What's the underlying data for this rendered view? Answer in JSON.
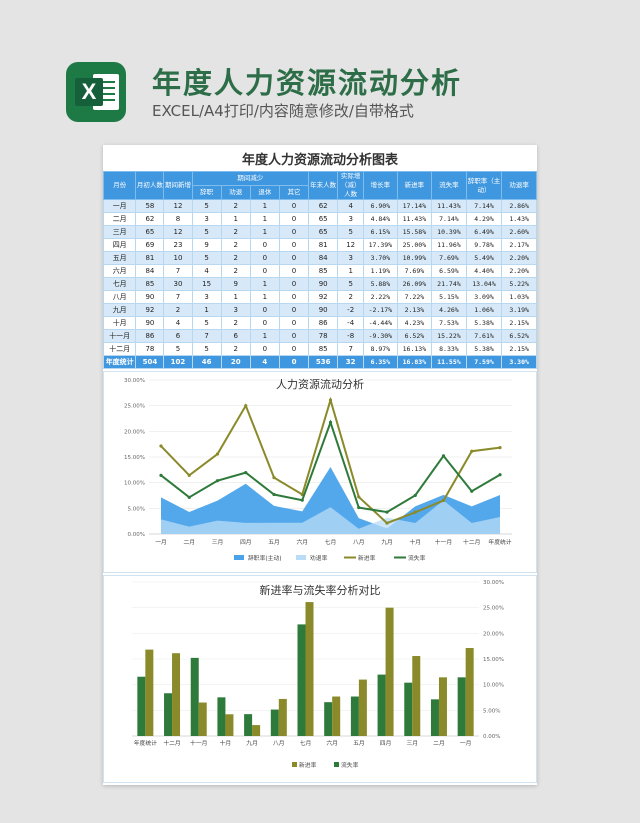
{
  "header": {
    "title": "年度人力资源流动分析",
    "subtitle": "EXCEL/A4打印/内容随意修改/自带格式",
    "icon": "excel-icon"
  },
  "table": {
    "title": "年度人力资源流动分析图表",
    "headers": {
      "month": "月份",
      "start": "月初人数",
      "new": "期间新增",
      "decrease": "期间减少",
      "resign": "辞职",
      "dismiss": "劝退",
      "retire": "退休",
      "other": "其它",
      "end": "年末人数",
      "actual": "实际增（减）人数",
      "growth": "增长率",
      "newRate": "新进率",
      "lossRate": "流失率",
      "resignRate": "辞职率（主动）",
      "dismissRate": "劝退率"
    },
    "rows": [
      [
        "一月",
        "58",
        "12",
        "5",
        "2",
        "1",
        "0",
        "62",
        "4",
        "6.90%",
        "17.14%",
        "11.43%",
        "7.14%",
        "2.86%"
      ],
      [
        "二月",
        "62",
        "8",
        "3",
        "1",
        "1",
        "0",
        "65",
        "3",
        "4.84%",
        "11.43%",
        "7.14%",
        "4.29%",
        "1.43%"
      ],
      [
        "三月",
        "65",
        "12",
        "5",
        "2",
        "1",
        "0",
        "65",
        "5",
        "6.15%",
        "15.58%",
        "10.39%",
        "6.49%",
        "2.60%"
      ],
      [
        "四月",
        "69",
        "23",
        "9",
        "2",
        "0",
        "0",
        "81",
        "12",
        "17.39%",
        "25.00%",
        "11.96%",
        "9.78%",
        "2.17%"
      ],
      [
        "五月",
        "81",
        "10",
        "5",
        "2",
        "0",
        "0",
        "84",
        "3",
        "3.70%",
        "10.99%",
        "7.69%",
        "5.49%",
        "2.20%"
      ],
      [
        "六月",
        "84",
        "7",
        "4",
        "2",
        "0",
        "0",
        "85",
        "1",
        "1.19%",
        "7.69%",
        "6.59%",
        "4.40%",
        "2.20%"
      ],
      [
        "七月",
        "85",
        "30",
        "15",
        "9",
        "1",
        "0",
        "90",
        "5",
        "5.88%",
        "26.09%",
        "21.74%",
        "13.04%",
        "5.22%"
      ],
      [
        "八月",
        "90",
        "7",
        "3",
        "1",
        "1",
        "0",
        "92",
        "2",
        "2.22%",
        "7.22%",
        "5.15%",
        "3.09%",
        "1.03%"
      ],
      [
        "九月",
        "92",
        "2",
        "1",
        "3",
        "0",
        "0",
        "90",
        "-2",
        "-2.17%",
        "2.13%",
        "4.26%",
        "1.06%",
        "3.19%"
      ],
      [
        "十月",
        "90",
        "4",
        "5",
        "2",
        "0",
        "0",
        "86",
        "-4",
        "-4.44%",
        "4.23%",
        "7.53%",
        "5.38%",
        "2.15%"
      ],
      [
        "十一月",
        "86",
        "6",
        "7",
        "6",
        "1",
        "0",
        "78",
        "-8",
        "-9.30%",
        "6.52%",
        "15.22%",
        "7.61%",
        "6.52%"
      ],
      [
        "十二月",
        "78",
        "5",
        "5",
        "2",
        "0",
        "0",
        "85",
        "7",
        "8.97%",
        "16.13%",
        "8.33%",
        "5.38%",
        "2.15%"
      ]
    ],
    "total": [
      "年度统计",
      "504",
      "102",
      "46",
      "20",
      "4",
      "0",
      "536",
      "32",
      "6.35%",
      "16.83%",
      "11.55%",
      "7.59%",
      "3.30%"
    ]
  },
  "chart_data": [
    {
      "type": "line",
      "title": "人力资源流动分析",
      "categories": [
        "一月",
        "二月",
        "三月",
        "四月",
        "五月",
        "六月",
        "七月",
        "八月",
        "九月",
        "十月",
        "十一月",
        "十二月",
        "年度统计"
      ],
      "yticks": [
        "0.00%",
        "5.00%",
        "10.00%",
        "15.00%",
        "20.00%",
        "25.00%",
        "30.00%"
      ],
      "ylim": [
        0,
        30
      ],
      "series": [
        {
          "name": "辞职率(主动)",
          "kind": "area",
          "color": "#4aa3ea",
          "values": [
            7.14,
            4.29,
            6.49,
            9.78,
            5.49,
            4.4,
            13.04,
            3.09,
            1.06,
            5.38,
            7.61,
            5.38,
            7.59
          ]
        },
        {
          "name": "劝退率",
          "kind": "area",
          "color": "#b9dcf7",
          "values": [
            2.86,
            1.43,
            2.6,
            2.17,
            2.2,
            2.2,
            5.22,
            1.03,
            3.19,
            2.15,
            6.52,
            2.15,
            3.3
          ]
        },
        {
          "name": "新进率",
          "kind": "line",
          "color": "#8a8a2a",
          "values": [
            17.14,
            11.43,
            15.58,
            25.0,
            10.99,
            7.69,
            26.09,
            7.22,
            2.13,
            4.23,
            6.52,
            16.13,
            16.83
          ]
        },
        {
          "name": "流失率",
          "kind": "line",
          "color": "#2e7a3a",
          "values": [
            11.43,
            7.14,
            10.39,
            11.96,
            7.69,
            6.59,
            21.74,
            5.15,
            4.26,
            7.53,
            15.22,
            8.33,
            11.55
          ]
        }
      ],
      "legend": "bottom"
    },
    {
      "type": "bar",
      "title": "新进率与流失率分析对比",
      "categories": [
        "年度统计",
        "十二月",
        "十一月",
        "十月",
        "九月",
        "八月",
        "七月",
        "六月",
        "五月",
        "四月",
        "三月",
        "二月",
        "一月"
      ],
      "yticks": [
        "0.00%",
        "5.00%",
        "10.00%",
        "15.00%",
        "20.00%",
        "25.00%",
        "30.00%"
      ],
      "ylim": [
        0,
        30
      ],
      "series": [
        {
          "name": "新进率",
          "color": "#8a8a2a",
          "values": [
            16.83,
            16.13,
            6.52,
            4.23,
            2.13,
            7.22,
            26.09,
            7.69,
            10.99,
            25.0,
            15.58,
            11.43,
            17.14
          ]
        },
        {
          "name": "流失率",
          "color": "#2e7a3a",
          "values": [
            11.55,
            8.33,
            15.22,
            7.53,
            4.26,
            5.15,
            21.74,
            6.59,
            7.69,
            11.96,
            10.39,
            7.14,
            11.43
          ]
        }
      ],
      "legend": "bottom"
    }
  ]
}
